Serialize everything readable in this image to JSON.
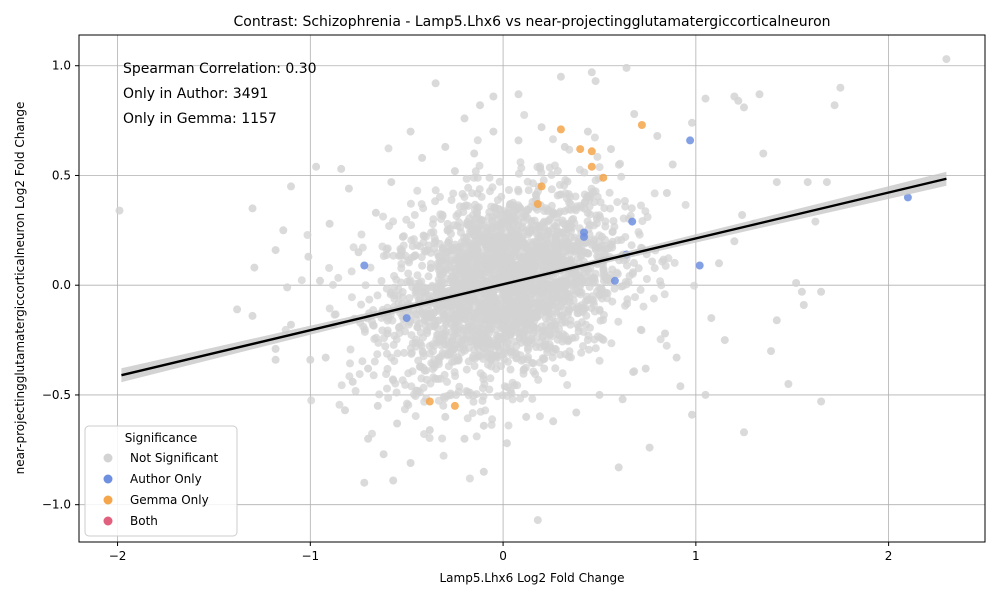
{
  "chart_data": {
    "type": "scatter",
    "title": "Contrast: Schizophrenia - Lamp5.Lhx6 vs near-projectingglutamatergiccorticalneuron",
    "xlabel": "Lamp5.Lhx6 Log2 Fold Change",
    "ylabel": "near-projectingglutamatergiccorticalneuron Log2 Fold Change",
    "xlim": [
      -2.2,
      2.5
    ],
    "ylim": [
      -1.17,
      1.14
    ],
    "x_ticks": [
      -2,
      -1,
      0,
      1,
      2
    ],
    "x_tick_labels": [
      "−2",
      "−1",
      "0",
      "1",
      "2"
    ],
    "y_ticks": [
      -1.0,
      -0.5,
      0.0,
      0.5,
      1.0
    ],
    "y_tick_labels": [
      "−1.0",
      "−0.5",
      "0.0",
      "0.5",
      "1.0"
    ],
    "grid": true,
    "annotations": [
      "Spearman Correlation: 0.30",
      "Only in Author: 3491",
      "Only in Gemma: 1157"
    ],
    "legend": {
      "title": "Significance",
      "placement": "lower-left",
      "entries": [
        {
          "label": "Not Significant",
          "color": "#d3d3d3"
        },
        {
          "label": "Author Only",
          "color": "#6f8fe0"
        },
        {
          "label": "Gemma Only",
          "color": "#f5a54a"
        },
        {
          "label": "Both",
          "color": "#e0607e"
        }
      ]
    },
    "regression_line": {
      "x": [
        -1.98,
        2.3
      ],
      "y": [
        -0.41,
        0.485
      ],
      "color": "#000000"
    },
    "series": [
      {
        "name": "Not Significant",
        "color": "#d3d3d3",
        "points": [
          [
            -1.99,
            0.34
          ],
          [
            -1.3,
            0.35
          ],
          [
            -1.29,
            0.08
          ],
          [
            -1.38,
            -0.11
          ],
          [
            -1.3,
            -0.14
          ],
          [
            -1.18,
            0.16
          ],
          [
            -1.14,
            0.25
          ],
          [
            -1.12,
            -0.01
          ],
          [
            -1.1,
            0.45
          ],
          [
            -1.1,
            -0.18
          ],
          [
            -1.18,
            -0.29
          ],
          [
            -1.18,
            -0.34
          ],
          [
            -1.01,
            0.13
          ],
          [
            -1.0,
            -0.34
          ],
          [
            -0.97,
            0.54
          ],
          [
            -0.9,
            0.28
          ],
          [
            -0.84,
            0.53
          ],
          [
            -0.8,
            0.44
          ],
          [
            -0.78,
            -0.44
          ],
          [
            -0.82,
            -0.57
          ],
          [
            -0.72,
            -0.9
          ],
          [
            -0.7,
            -0.7
          ],
          [
            -0.65,
            -0.55
          ],
          [
            -0.62,
            -0.77
          ],
          [
            -0.57,
            -0.89
          ],
          [
            -0.55,
            -0.63
          ],
          [
            -0.48,
            0.7
          ],
          [
            -0.48,
            -0.81
          ],
          [
            -0.35,
            0.92
          ],
          [
            -0.3,
            0.63
          ],
          [
            -0.2,
            0.76
          ],
          [
            -0.12,
            0.82
          ],
          [
            -0.1,
            -0.85
          ],
          [
            -0.05,
            0.86
          ],
          [
            0.08,
            0.87
          ],
          [
            0.18,
            -1.07
          ],
          [
            0.3,
            0.95
          ],
          [
            0.46,
            0.97
          ],
          [
            0.48,
            0.93
          ],
          [
            0.64,
            0.99
          ],
          [
            0.6,
            -0.83
          ],
          [
            0.76,
            -0.74
          ],
          [
            0.98,
            0.74
          ],
          [
            1.05,
            0.85
          ],
          [
            1.2,
            0.86
          ],
          [
            1.22,
            0.84
          ],
          [
            1.25,
            0.81
          ],
          [
            1.33,
            0.87
          ],
          [
            1.35,
            0.6
          ],
          [
            1.72,
            0.82
          ],
          [
            1.75,
            0.9
          ],
          [
            1.58,
            0.47
          ],
          [
            1.62,
            0.29
          ],
          [
            1.68,
            0.47
          ],
          [
            1.42,
            0.47
          ],
          [
            1.52,
            0.01
          ],
          [
            1.55,
            -0.03
          ],
          [
            1.56,
            -0.09
          ],
          [
            1.65,
            -0.03
          ],
          [
            1.42,
            -0.16
          ],
          [
            1.48,
            -0.45
          ],
          [
            1.39,
            -0.3
          ],
          [
            1.25,
            -0.67
          ],
          [
            1.65,
            -0.53
          ],
          [
            1.05,
            -0.5
          ],
          [
            0.98,
            -0.59
          ],
          [
            2.3,
            1.03
          ],
          [
            1.24,
            0.32
          ],
          [
            1.3,
            0.28
          ],
          [
            1.12,
            0.1
          ],
          [
            1.2,
            0.2
          ],
          [
            1.08,
            -0.15
          ],
          [
            1.15,
            -0.25
          ],
          [
            0.92,
            -0.46
          ],
          [
            0.88,
            0.55
          ],
          [
            0.85,
            0.42
          ],
          [
            0.9,
            -0.33
          ],
          [
            -0.88,
            -0.18
          ],
          [
            -0.95,
            0.02
          ],
          [
            -0.92,
            -0.33
          ],
          [
            -0.75,
            0.15
          ],
          [
            -0.7,
            -0.38
          ],
          [
            -0.66,
            0.33
          ],
          [
            -0.6,
            -0.22
          ],
          [
            -0.58,
            0.47
          ],
          [
            -0.52,
            0.22
          ],
          [
            -0.45,
            -0.48
          ],
          [
            -0.42,
            0.58
          ],
          [
            -0.38,
            -0.66
          ],
          [
            -0.3,
            -0.6
          ],
          [
            -0.25,
            0.52
          ],
          [
            -0.2,
            -0.7
          ],
          [
            -0.15,
            0.6
          ],
          [
            -0.1,
            -0.64
          ],
          [
            -0.05,
            0.7
          ],
          [
            0.02,
            -0.72
          ],
          [
            0.08,
            0.66
          ],
          [
            0.12,
            -0.6
          ],
          [
            0.2,
            0.72
          ],
          [
            0.26,
            -0.62
          ],
          [
            0.32,
            0.63
          ],
          [
            0.38,
            -0.58
          ],
          [
            0.44,
            0.7
          ],
          [
            0.5,
            -0.5
          ],
          [
            0.56,
            0.62
          ],
          [
            0.62,
            -0.52
          ],
          [
            0.68,
            0.78
          ],
          [
            0.74,
            -0.38
          ],
          [
            0.8,
            0.68
          ],
          [
            0.84,
            -0.22
          ]
        ]
      },
      {
        "name": "Author Only",
        "color": "#6f8fe0",
        "points": [
          [
            -0.72,
            0.09
          ],
          [
            -0.5,
            -0.15
          ],
          [
            0.42,
            0.24
          ],
          [
            0.42,
            0.22
          ],
          [
            0.58,
            0.02
          ],
          [
            0.64,
            0.14
          ],
          [
            0.67,
            0.29
          ],
          [
            0.97,
            0.66
          ],
          [
            1.02,
            0.09
          ],
          [
            2.1,
            0.4
          ]
        ]
      },
      {
        "name": "Gemma Only",
        "color": "#f5a54a",
        "points": [
          [
            -0.38,
            -0.53
          ],
          [
            -0.25,
            -0.55
          ],
          [
            0.18,
            0.37
          ],
          [
            0.2,
            0.45
          ],
          [
            0.3,
            0.71
          ],
          [
            0.4,
            0.62
          ],
          [
            0.46,
            0.61
          ],
          [
            0.46,
            0.54
          ],
          [
            0.52,
            0.49
          ],
          [
            0.72,
            0.73
          ]
        ]
      },
      {
        "name": "Both",
        "color": "#e0607e",
        "points": []
      }
    ]
  }
}
